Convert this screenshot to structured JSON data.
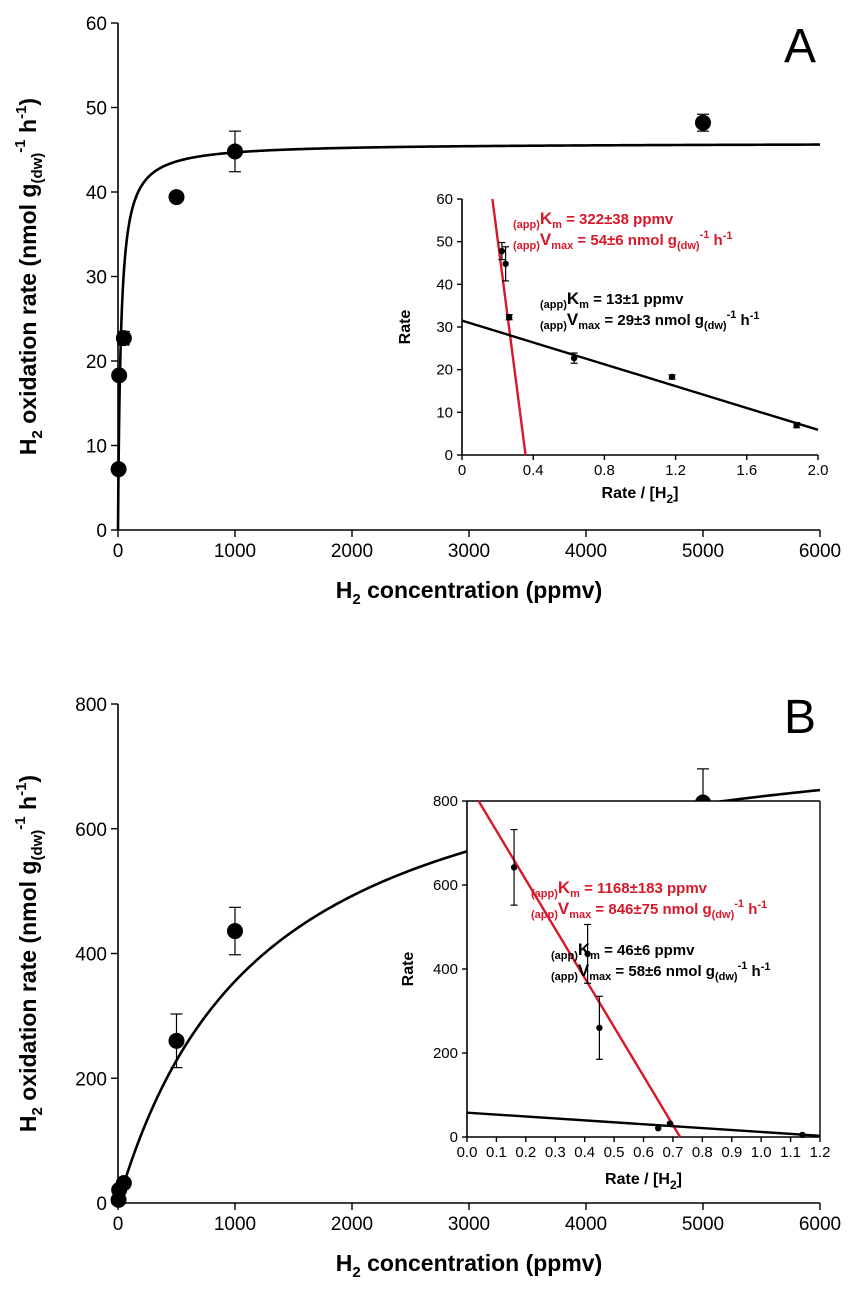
{
  "figure": {
    "panels": [
      {
        "panel_label": "A",
        "main": {
          "y_label": {
            "pre": "H",
            "sub1": "2",
            "mid": " oxidation rate (nmol g",
            "sub2": "(dw)",
            "sup": "-1",
            "post": " h",
            "sup2": "-1",
            "close": ")"
          },
          "x_label": {
            "pre": "H",
            "sub1": "2",
            "post": " concentration (ppmv)"
          }
        },
        "inset": {
          "y_label": "Rate",
          "x_label": {
            "pre": "Rate / [H",
            "sub": "2",
            "post": "]"
          },
          "annotations": [
            {
              "color": "#d7182a",
              "km": {
                "pre": "(app)",
                "sym": "K",
                "sub": "m",
                "text": " = 322±38 ppmv"
              },
              "vmax": {
                "pre": "(app)",
                "sym": "V",
                "sub": "max",
                "text": " = 54±6 nmol g",
                "sub2": "(dw)",
                "sup": "-1",
                "post": " h",
                "sup2": "-1"
              }
            },
            {
              "color": "#000000",
              "km": {
                "pre": "(app)",
                "sym": "K",
                "sub": "m",
                "text": " = 13±1 ppmv"
              },
              "vmax": {
                "pre": "(app)",
                "sym": "V",
                "sub": "max",
                "text": " = 29±3 nmol g",
                "sub2": "(dw)",
                "sup": "-1",
                "post": " h",
                "sup2": "-1"
              }
            }
          ]
        }
      },
      {
        "panel_label": "B",
        "main": {
          "y_label": {
            "pre": "H",
            "sub1": "2",
            "mid": " oxidation rate (nmol g",
            "sub2": "(dw)",
            "sup": "-1",
            "post": " h",
            "sup2": "-1",
            "close": ")"
          },
          "x_label": {
            "pre": "H",
            "sub1": "2",
            "post": " concentration (ppmv)"
          }
        },
        "inset": {
          "y_label": "Rate",
          "x_label": {
            "pre": "Rate / [H",
            "sub": "2",
            "post": "]"
          },
          "annotations": [
            {
              "color": "#d7182a",
              "km": {
                "pre": "(app)",
                "sym": "K",
                "sub": "m",
                "text": " = 1168±183 ppmv"
              },
              "vmax": {
                "pre": "(app)",
                "sym": "V",
                "sub": "max",
                "text": " = 846±75 nmol g",
                "sub2": "(dw)",
                "sup": "-1",
                "post": " h",
                "sup2": "-1"
              }
            },
            {
              "color": "#000000",
              "km": {
                "pre": "(app)",
                "sym": "K",
                "sub": "m",
                "text": " = 46±6 ppmv"
              },
              "vmax": {
                "pre": "(app)",
                "sym": "V",
                "sub": "max",
                "text": " = 58±6 nmol g",
                "sub2": "(dw)",
                "sup": "-1",
                "post": " h",
                "sup2": "-1"
              }
            }
          ]
        }
      }
    ]
  },
  "chart_data": [
    {
      "type": "scatter",
      "panel": "A",
      "xlim": [
        0,
        6000
      ],
      "ylim": [
        0,
        60
      ],
      "xticks": [
        0,
        1000,
        2000,
        3000,
        4000,
        5000,
        6000
      ],
      "yticks": [
        0,
        10,
        20,
        30,
        40,
        50,
        60
      ],
      "points": [
        {
          "x": 5,
          "y": 7.2,
          "err": 0.4
        },
        {
          "x": 10,
          "y": 18.3,
          "err": 0.3
        },
        {
          "x": 50,
          "y": 22.7,
          "err": 0.8
        },
        {
          "x": 500,
          "y": 39.4,
          "err": 0.5
        },
        {
          "x": 1000,
          "y": 44.8,
          "err": 2.4
        },
        {
          "x": 5000,
          "y": 48.2,
          "err": 1.0
        }
      ],
      "curve": {
        "model": "michaelis-menten",
        "vmax": 45.8,
        "km": 25,
        "color": "#000000"
      },
      "grid": false
    },
    {
      "type": "scatter",
      "panel": "A-inset",
      "xlim": [
        0,
        2.0
      ],
      "ylim": [
        0,
        60
      ],
      "xticks": [
        "0",
        "0.4",
        "0.8",
        "1.2",
        "1.6",
        "2.0"
      ],
      "yticks": [
        0,
        10,
        20,
        30,
        40,
        50,
        60
      ],
      "points": [
        {
          "x": 0.224,
          "y": 47.8,
          "err": 2.0
        },
        {
          "x": 0.245,
          "y": 44.8,
          "err": 4.0
        },
        {
          "x": 0.265,
          "y": 32.3,
          "err": 0.6
        },
        {
          "x": 0.63,
          "y": 22.7,
          "err": 1.2
        },
        {
          "x": 1.18,
          "y": 18.3,
          "err": 0.5
        },
        {
          "x": 1.88,
          "y": 7.0,
          "err": 0.6
        }
      ],
      "lines": [
        {
          "color": "#d7182a",
          "slope": -322,
          "intercept": 115
        },
        {
          "color": "#000000",
          "slope": -12.8,
          "intercept": 31.5
        }
      ],
      "grid": false
    },
    {
      "type": "scatter",
      "panel": "B",
      "xlim": [
        0,
        6000
      ],
      "ylim": [
        0,
        800
      ],
      "xticks": [
        0,
        1000,
        2000,
        3000,
        4000,
        5000,
        6000
      ],
      "yticks": [
        0,
        200,
        400,
        600,
        800
      ],
      "points": [
        {
          "x": 5,
          "y": 5,
          "err": 0
        },
        {
          "x": 10,
          "y": 21,
          "err": 0
        },
        {
          "x": 50,
          "y": 32,
          "err": 0
        },
        {
          "x": 500,
          "y": 260,
          "err": 43
        },
        {
          "x": 1000,
          "y": 436,
          "err": 38
        },
        {
          "x": 5000,
          "y": 642,
          "err": 54
        }
      ],
      "curve": {
        "model": "michaelis-menten",
        "vmax": 800,
        "km": 1250,
        "color": "#000000"
      },
      "grid": false
    },
    {
      "type": "scatter",
      "panel": "B-inset",
      "xlim": [
        0,
        1.2
      ],
      "ylim": [
        0,
        800
      ],
      "xticks": [
        "0.0",
        "0.1",
        "0.2",
        "0.3",
        "0.4",
        "0.5",
        "0.6",
        "0.7",
        "0.8",
        "0.9",
        "1.0",
        "1.1",
        "1.2"
      ],
      "yticks": [
        0,
        200,
        400,
        600,
        800
      ],
      "points": [
        {
          "x": 0.16,
          "y": 642,
          "err": 90
        },
        {
          "x": 0.41,
          "y": 436,
          "err": 70
        },
        {
          "x": 0.45,
          "y": 260,
          "err": 75
        },
        {
          "x": 0.65,
          "y": 21,
          "err": 0
        },
        {
          "x": 0.69,
          "y": 32,
          "err": 0
        },
        {
          "x": 1.14,
          "y": 5,
          "err": 0
        }
      ],
      "lines": [
        {
          "color": "#d7182a",
          "slope": -1168,
          "intercept": 846
        },
        {
          "color": "#000000",
          "slope": -46,
          "intercept": 58
        }
      ],
      "grid": false
    }
  ]
}
